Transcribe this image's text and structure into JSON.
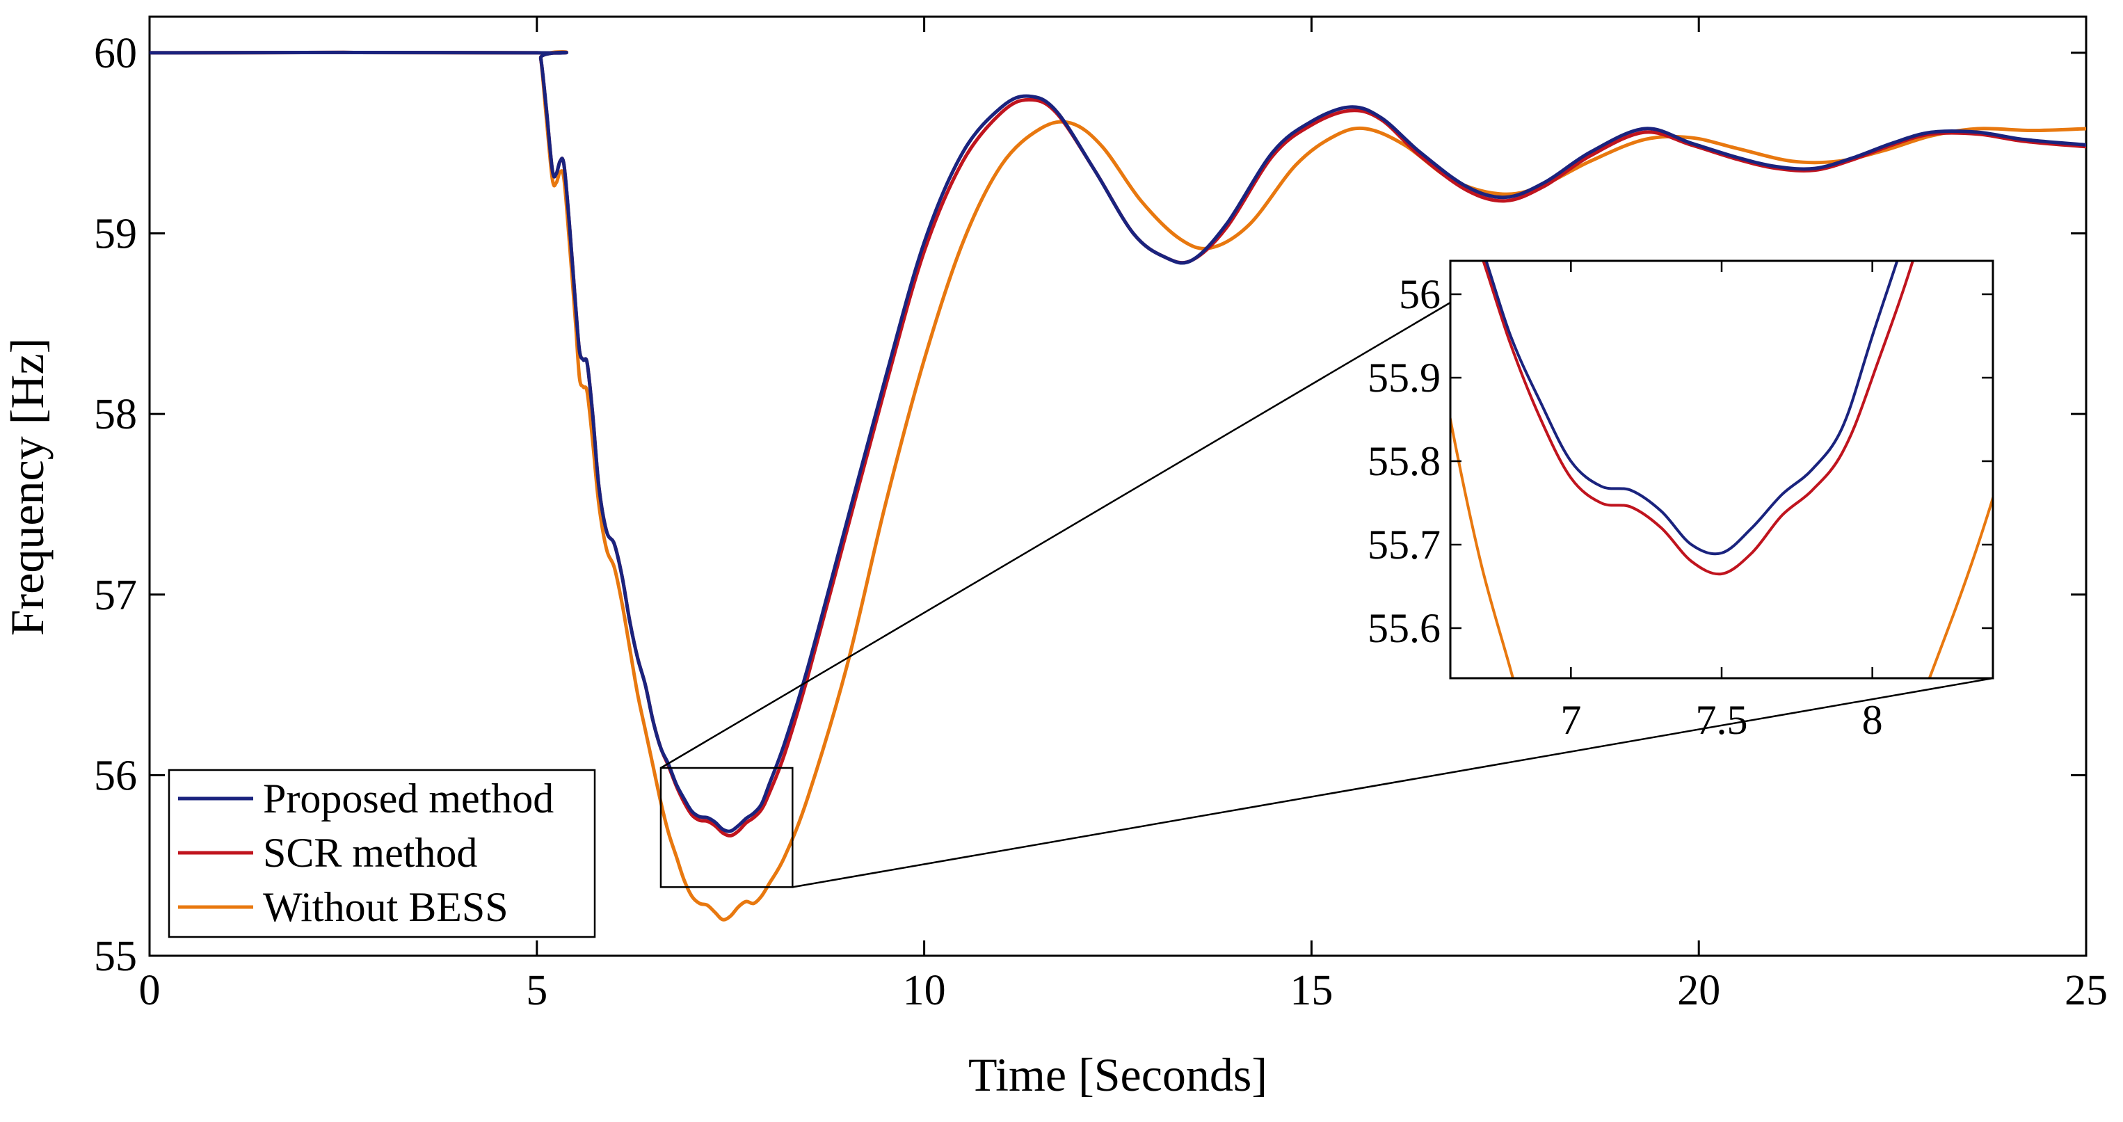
{
  "chart_data": {
    "type": "line",
    "title": "",
    "xlabel": "Time [Seconds]",
    "ylabel": "Frequency [Hz]",
    "xlim": [
      0,
      25
    ],
    "ylim": [
      55,
      60.2
    ],
    "xticks": [
      0,
      5,
      10,
      15,
      20,
      25
    ],
    "yticks": [
      55,
      56,
      57,
      58,
      59,
      60
    ],
    "grid": false,
    "legend_location": "bottom-left",
    "colors": {
      "proposed": "#1a237e",
      "scr": "#c0141e",
      "without": "#e8780f",
      "axis": "#000000"
    },
    "series": [
      {
        "name": "Proposed method",
        "color": "#1a237e",
        "points": [
          [
            0,
            60
          ],
          [
            5,
            60
          ],
          [
            5.05,
            59.97
          ],
          [
            5.12,
            59.7
          ],
          [
            5.2,
            59.35
          ],
          [
            5.25,
            59.33
          ],
          [
            5.3,
            59.4
          ],
          [
            5.35,
            59.38
          ],
          [
            5.42,
            59.05
          ],
          [
            5.5,
            58.6
          ],
          [
            5.55,
            58.35
          ],
          [
            5.6,
            58.3
          ],
          [
            5.65,
            58.28
          ],
          [
            5.72,
            58.0
          ],
          [
            5.8,
            57.6
          ],
          [
            5.9,
            57.35
          ],
          [
            6.0,
            57.28
          ],
          [
            6.1,
            57.1
          ],
          [
            6.2,
            56.85
          ],
          [
            6.3,
            56.65
          ],
          [
            6.4,
            56.5
          ],
          [
            6.5,
            56.3
          ],
          [
            6.6,
            56.15
          ],
          [
            6.7,
            56.06
          ],
          [
            6.8,
            55.95
          ],
          [
            6.9,
            55.87
          ],
          [
            7.0,
            55.8
          ],
          [
            7.1,
            55.77
          ],
          [
            7.2,
            55.765
          ],
          [
            7.3,
            55.74
          ],
          [
            7.4,
            55.7
          ],
          [
            7.5,
            55.69
          ],
          [
            7.6,
            55.72
          ],
          [
            7.7,
            55.76
          ],
          [
            7.8,
            55.79
          ],
          [
            7.9,
            55.84
          ],
          [
            8.0,
            55.95
          ],
          [
            8.2,
            56.18
          ],
          [
            8.5,
            56.6
          ],
          [
            9.0,
            57.4
          ],
          [
            9.5,
            58.2
          ],
          [
            10.0,
            58.95
          ],
          [
            10.5,
            59.45
          ],
          [
            11.0,
            59.7
          ],
          [
            11.35,
            59.76
          ],
          [
            11.7,
            59.68
          ],
          [
            12.2,
            59.35
          ],
          [
            12.7,
            59.0
          ],
          [
            13.1,
            58.87
          ],
          [
            13.45,
            58.85
          ],
          [
            13.9,
            59.05
          ],
          [
            14.5,
            59.45
          ],
          [
            15.0,
            59.62
          ],
          [
            15.5,
            59.7
          ],
          [
            15.9,
            59.64
          ],
          [
            16.4,
            59.45
          ],
          [
            17.0,
            59.26
          ],
          [
            17.5,
            59.2
          ],
          [
            18.0,
            59.28
          ],
          [
            18.6,
            59.45
          ],
          [
            19.3,
            59.58
          ],
          [
            19.9,
            59.5
          ],
          [
            20.5,
            59.42
          ],
          [
            21.0,
            59.37
          ],
          [
            21.5,
            59.36
          ],
          [
            22.0,
            59.42
          ],
          [
            22.5,
            59.5
          ],
          [
            23.0,
            59.56
          ],
          [
            23.6,
            59.56
          ],
          [
            24.2,
            59.52
          ],
          [
            25.0,
            59.49
          ]
        ]
      },
      {
        "name": "SCR method",
        "color": "#c0141e",
        "points": [
          [
            0,
            60
          ],
          [
            5,
            60
          ],
          [
            5.05,
            59.97
          ],
          [
            5.12,
            59.7
          ],
          [
            5.2,
            59.35
          ],
          [
            5.25,
            59.33
          ],
          [
            5.3,
            59.4
          ],
          [
            5.35,
            59.38
          ],
          [
            5.42,
            59.05
          ],
          [
            5.5,
            58.6
          ],
          [
            5.55,
            58.35
          ],
          [
            5.6,
            58.3
          ],
          [
            5.65,
            58.28
          ],
          [
            5.72,
            58.0
          ],
          [
            5.8,
            57.6
          ],
          [
            5.9,
            57.35
          ],
          [
            6.0,
            57.28
          ],
          [
            6.1,
            57.1
          ],
          [
            6.2,
            56.85
          ],
          [
            6.3,
            56.65
          ],
          [
            6.4,
            56.5
          ],
          [
            6.5,
            56.3
          ],
          [
            6.6,
            56.15
          ],
          [
            6.7,
            56.05
          ],
          [
            6.8,
            55.94
          ],
          [
            6.9,
            55.85
          ],
          [
            7.0,
            55.78
          ],
          [
            7.1,
            55.75
          ],
          [
            7.2,
            55.745
          ],
          [
            7.3,
            55.72
          ],
          [
            7.4,
            55.68
          ],
          [
            7.5,
            55.665
          ],
          [
            7.6,
            55.69
          ],
          [
            7.7,
            55.735
          ],
          [
            7.8,
            55.765
          ],
          [
            7.9,
            55.81
          ],
          [
            8.0,
            55.9
          ],
          [
            8.2,
            56.12
          ],
          [
            8.5,
            56.55
          ],
          [
            9.0,
            57.35
          ],
          [
            9.5,
            58.15
          ],
          [
            10.0,
            58.9
          ],
          [
            10.5,
            59.4
          ],
          [
            11.0,
            59.67
          ],
          [
            11.35,
            59.74
          ],
          [
            11.7,
            59.67
          ],
          [
            12.2,
            59.35
          ],
          [
            12.7,
            59.0
          ],
          [
            13.1,
            58.87
          ],
          [
            13.45,
            58.85
          ],
          [
            13.9,
            59.03
          ],
          [
            14.5,
            59.43
          ],
          [
            15.0,
            59.6
          ],
          [
            15.5,
            59.68
          ],
          [
            15.9,
            59.63
          ],
          [
            16.4,
            59.43
          ],
          [
            17.0,
            59.24
          ],
          [
            17.5,
            59.18
          ],
          [
            18.0,
            59.26
          ],
          [
            18.6,
            59.43
          ],
          [
            19.3,
            59.56
          ],
          [
            19.9,
            59.49
          ],
          [
            20.5,
            59.41
          ],
          [
            21.0,
            59.36
          ],
          [
            21.5,
            59.35
          ],
          [
            22.0,
            59.41
          ],
          [
            22.5,
            59.49
          ],
          [
            23.0,
            59.55
          ],
          [
            23.6,
            59.55
          ],
          [
            24.2,
            59.51
          ],
          [
            25.0,
            59.48
          ]
        ]
      },
      {
        "name": "Without BESS",
        "color": "#e8780f",
        "points": [
          [
            0,
            60
          ],
          [
            5,
            60
          ],
          [
            5.05,
            59.97
          ],
          [
            5.12,
            59.65
          ],
          [
            5.2,
            59.3
          ],
          [
            5.25,
            59.28
          ],
          [
            5.3,
            59.34
          ],
          [
            5.35,
            59.3
          ],
          [
            5.42,
            58.95
          ],
          [
            5.5,
            58.5
          ],
          [
            5.55,
            58.2
          ],
          [
            5.6,
            58.15
          ],
          [
            5.65,
            58.12
          ],
          [
            5.72,
            57.85
          ],
          [
            5.8,
            57.5
          ],
          [
            5.9,
            57.25
          ],
          [
            6.0,
            57.15
          ],
          [
            6.1,
            56.95
          ],
          [
            6.2,
            56.7
          ],
          [
            6.3,
            56.45
          ],
          [
            6.4,
            56.25
          ],
          [
            6.5,
            56.05
          ],
          [
            6.6,
            55.85
          ],
          [
            6.7,
            55.68
          ],
          [
            6.8,
            55.55
          ],
          [
            6.9,
            55.42
          ],
          [
            7.0,
            55.33
          ],
          [
            7.1,
            55.29
          ],
          [
            7.2,
            55.28
          ],
          [
            7.3,
            55.24
          ],
          [
            7.4,
            55.2
          ],
          [
            7.5,
            55.22
          ],
          [
            7.6,
            55.27
          ],
          [
            7.7,
            55.3
          ],
          [
            7.8,
            55.29
          ],
          [
            7.9,
            55.33
          ],
          [
            8.0,
            55.4
          ],
          [
            8.2,
            55.55
          ],
          [
            8.5,
            55.88
          ],
          [
            9.0,
            56.6
          ],
          [
            9.5,
            57.5
          ],
          [
            10.0,
            58.3
          ],
          [
            10.5,
            58.95
          ],
          [
            11.0,
            59.38
          ],
          [
            11.5,
            59.58
          ],
          [
            11.9,
            59.61
          ],
          [
            12.3,
            59.48
          ],
          [
            12.8,
            59.18
          ],
          [
            13.3,
            58.97
          ],
          [
            13.7,
            58.92
          ],
          [
            14.2,
            59.05
          ],
          [
            14.8,
            59.38
          ],
          [
            15.3,
            59.54
          ],
          [
            15.7,
            59.58
          ],
          [
            16.2,
            59.49
          ],
          [
            16.8,
            59.3
          ],
          [
            17.4,
            59.22
          ],
          [
            17.9,
            59.25
          ],
          [
            18.6,
            59.4
          ],
          [
            19.3,
            59.52
          ],
          [
            19.9,
            59.53
          ],
          [
            20.5,
            59.47
          ],
          [
            21.2,
            59.4
          ],
          [
            21.8,
            59.4
          ],
          [
            22.4,
            59.46
          ],
          [
            23.0,
            59.54
          ],
          [
            23.6,
            59.58
          ],
          [
            24.3,
            59.57
          ],
          [
            25.0,
            59.58
          ]
        ]
      }
    ],
    "inset": {
      "xlim": [
        6.6,
        8.4
      ],
      "ylim": [
        55.54,
        56.04
      ],
      "xticks": [
        7,
        7.5,
        8
      ],
      "yticks": [
        55.6,
        55.7,
        55.8,
        55.9,
        56
      ],
      "highlight_region": {
        "x": [
          6.6,
          8.3
        ],
        "y": [
          55.38,
          56.04
        ]
      }
    }
  }
}
